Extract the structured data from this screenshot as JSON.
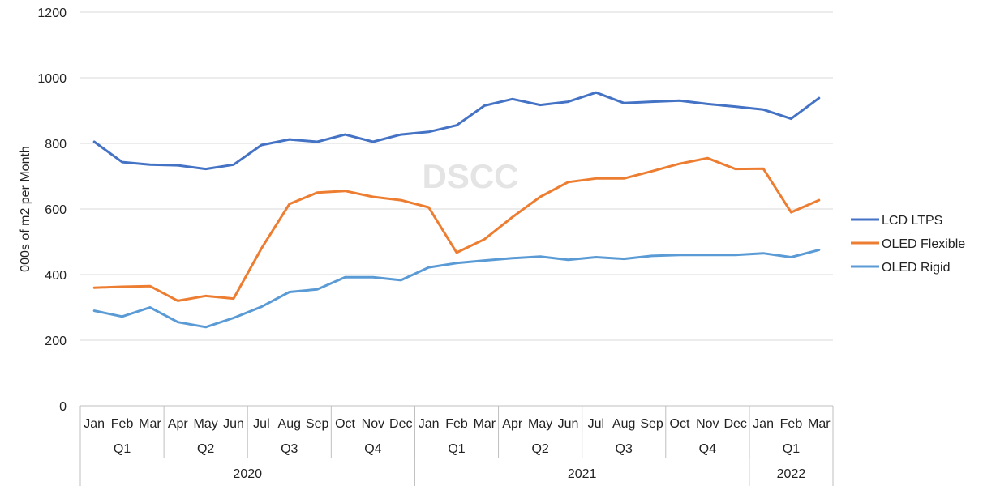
{
  "watermark": "DSCC",
  "chart_data": {
    "type": "line",
    "ylabel": "000s of m2 per Month",
    "xlabel": "",
    "ylim": [
      0,
      1200
    ],
    "yticks": [
      0,
      200,
      400,
      600,
      800,
      1000,
      1200
    ],
    "grid": "horizontal",
    "legend_position": "right",
    "categories": [
      "Jan",
      "Feb",
      "Mar",
      "Apr",
      "May",
      "Jun",
      "Jul",
      "Aug",
      "Sep",
      "Oct",
      "Nov",
      "Dec",
      "Jan",
      "Feb",
      "Mar",
      "Apr",
      "May",
      "Jun",
      "Jul",
      "Aug",
      "Sep",
      "Oct",
      "Nov",
      "Dec",
      "Jan",
      "Feb",
      "Mar"
    ],
    "quarters": [
      "Q1",
      "Q2",
      "Q3",
      "Q4",
      "Q1",
      "Q2",
      "Q3",
      "Q4",
      "Q1"
    ],
    "years": [
      {
        "label": "2020",
        "months": 12
      },
      {
        "label": "2021",
        "months": 12
      },
      {
        "label": "2022",
        "months": 3
      }
    ],
    "series": [
      {
        "name": "LCD LTPS",
        "color": "#4472C4",
        "values": [
          805,
          743,
          735,
          733,
          722,
          735,
          795,
          812,
          805,
          827,
          805,
          827,
          835,
          855,
          915,
          935,
          917,
          927,
          955,
          923,
          927,
          930,
          920,
          912,
          903,
          875,
          938
        ]
      },
      {
        "name": "OLED Flexible",
        "color": "#ED7D31",
        "values": [
          360,
          363,
          365,
          320,
          335,
          327,
          480,
          615,
          650,
          655,
          637,
          627,
          605,
          467,
          508,
          575,
          637,
          682,
          693,
          693,
          715,
          738,
          755,
          722,
          723,
          590,
          627
        ]
      },
      {
        "name": "OLED Rigid",
        "color": "#5B9BD5",
        "values": [
          290,
          272,
          300,
          255,
          240,
          268,
          302,
          347,
          355,
          392,
          392,
          383,
          422,
          435,
          443,
          450,
          455,
          445,
          453,
          448,
          457,
          460,
          460,
          460,
          465,
          453,
          475
        ]
      }
    ]
  }
}
